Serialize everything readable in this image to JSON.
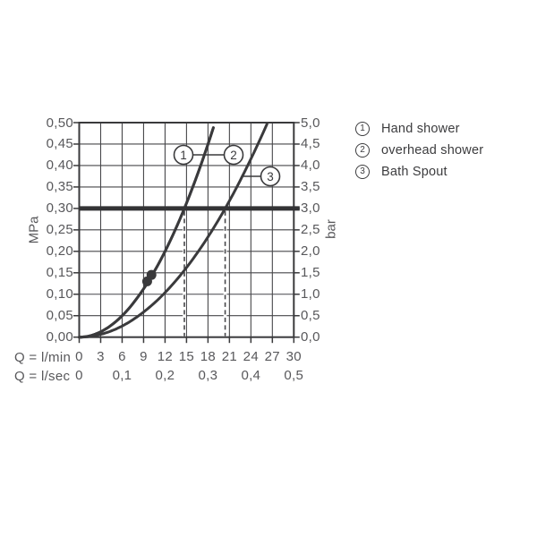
{
  "colors": {
    "ink": "#3a3a3c",
    "grid": "#47474a",
    "tick_text": "#58585b",
    "reference_line": "#333335",
    "background": "#ffffff"
  },
  "legend": {
    "items": [
      {
        "num": "1",
        "label": "Hand shower"
      },
      {
        "num": "2",
        "label": "overhead shower"
      },
      {
        "num": "3",
        "label": "Bath Spout"
      }
    ]
  },
  "chart_data": {
    "type": "line",
    "grid": true,
    "legend_position": "right",
    "x_axis": {
      "unit_row1": "Q = l/min",
      "unit_row2": "Q = l/sec",
      "ticks_lmin": [
        "0",
        "3",
        "6",
        "9",
        "12",
        "15",
        "18",
        "21",
        "24",
        "27",
        "30"
      ],
      "ticks_lsec": [
        "0",
        "0,1",
        "0,2",
        "0,3",
        "0,4",
        "0,5"
      ],
      "range_lmin": [
        0,
        30
      ]
    },
    "y_axis_left": {
      "unit": "MPa",
      "ticks": [
        "0,00",
        "0,05",
        "0,10",
        "0,15",
        "0,20",
        "0,25",
        "0,30",
        "0,35",
        "0,40",
        "0,45",
        "0,50"
      ],
      "range_mpa": [
        0,
        0.5
      ]
    },
    "y_axis_right": {
      "unit": "bar",
      "ticks": [
        "0,0",
        "0,5",
        "1,0",
        "1,5",
        "2,0",
        "2,5",
        "3,0",
        "3,5",
        "4,0",
        "4,5",
        "5,0"
      ],
      "range_bar": [
        0,
        5
      ]
    },
    "reference_line": {
      "mpa": 0.3,
      "bar": 3.0
    },
    "series": [
      {
        "callout": "1",
        "name": "Hand shower",
        "crosses_reference_at_lmin": 14.7,
        "points_lmin_mpa": [
          [
            0,
            0
          ],
          [
            3,
            0.012
          ],
          [
            6,
            0.05
          ],
          [
            9,
            0.112
          ],
          [
            12,
            0.2
          ],
          [
            14.7,
            0.3
          ],
          [
            19,
            0.5
          ]
        ]
      },
      {
        "callout": "2",
        "name": "overhead shower",
        "crosses_reference_at_lmin": 14.7,
        "points_lmin_mpa": [
          [
            0,
            0
          ],
          [
            3,
            0.012
          ],
          [
            6,
            0.05
          ],
          [
            9,
            0.112
          ],
          [
            12,
            0.2
          ],
          [
            14.7,
            0.3
          ],
          [
            19,
            0.5
          ]
        ]
      },
      {
        "callout": "3",
        "name": "Bath Spout",
        "crosses_reference_at_lmin": 20.4,
        "points_lmin_mpa": [
          [
            0,
            0
          ],
          [
            6,
            0.026
          ],
          [
            12,
            0.104
          ],
          [
            18,
            0.234
          ],
          [
            20.4,
            0.3
          ],
          [
            26.3,
            0.5
          ]
        ]
      }
    ],
    "dashed_guides_lmin": [
      14.7,
      20.4
    ],
    "marked_points_lmin_mpa": [
      [
        9.5,
        0.13
      ],
      [
        10.1,
        0.145
      ]
    ]
  }
}
